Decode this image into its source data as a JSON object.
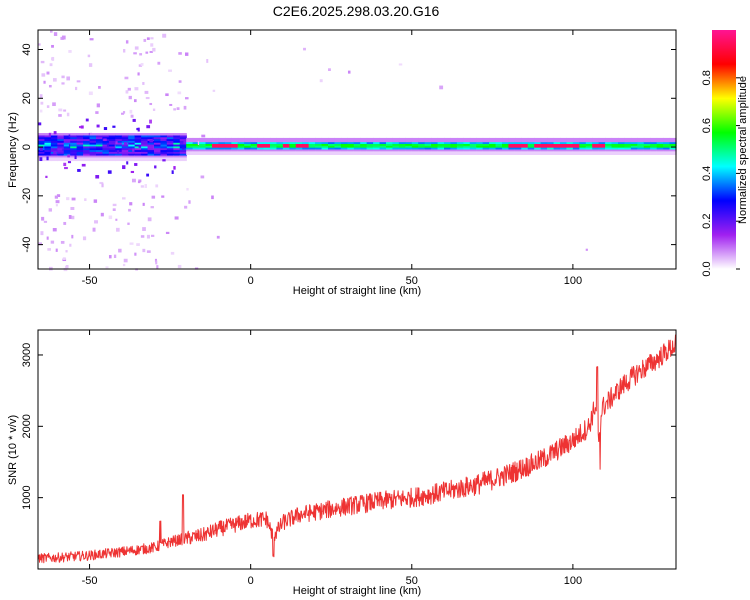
{
  "title": "C2E6.2025.298.03.20.G16",
  "chart_data": [
    {
      "type": "heatmap",
      "id": "spectrogram",
      "xlabel": "Height of straight line (km)",
      "ylabel": "Frequency (Hz)",
      "xlim": [
        -66,
        132
      ],
      "ylim": [
        -50,
        48
      ],
      "xticks": [
        -50,
        0,
        50,
        100
      ],
      "yticks": [
        -40,
        -20,
        0,
        20,
        40
      ],
      "x_tick_labels": [
        "-50",
        "0",
        "50",
        "100"
      ],
      "y_tick_labels": [
        "-40",
        "-20",
        "0",
        "20",
        "40"
      ],
      "colorbar": {
        "label": "Normalized spectral amplitude",
        "range": [
          0,
          1
        ],
        "ticks": [
          0.0,
          0.2,
          0.4,
          0.6,
          0.8
        ],
        "tick_labels": [
          "0.0",
          "0.2",
          "0.4",
          "0.6",
          "0.8"
        ],
        "colormap": [
          "#ffffff",
          "#a020f0",
          "#0000ff",
          "#00ffff",
          "#00ff00",
          "#ffff00",
          "#ff0000",
          "#ff1493"
        ]
      },
      "band_center_hz": 0.5,
      "band_halfwidth_hz": 1.5,
      "strong_segments_km": [
        [
          -12,
          -5
        ],
        [
          2,
          6
        ],
        [
          10,
          12
        ],
        [
          15,
          18
        ],
        [
          81,
          86
        ],
        [
          88,
          102
        ],
        [
          107,
          109
        ]
      ],
      "noise_region_km": [
        -66,
        -20
      ]
    },
    {
      "type": "line",
      "id": "snr",
      "xlabel": "Height of straight line (km)",
      "ylabel": "SNR (10 * v/v)",
      "xlim": [
        -66,
        132
      ],
      "ylim": [
        0,
        3350
      ],
      "xticks": [
        -50,
        0,
        50,
        100
      ],
      "yticks": [
        1000,
        2000,
        3000
      ],
      "x_tick_labels": [
        "-50",
        "0",
        "50",
        "100"
      ],
      "y_tick_labels": [
        "1000",
        "2000",
        "3000"
      ],
      "color": "#ee3333",
      "series": [
        {
          "name": "SNR",
          "x": [
            -66,
            -60,
            -50,
            -40,
            -30,
            -25,
            -21,
            -15,
            -10,
            -5,
            0,
            5,
            7,
            10,
            15,
            20,
            30,
            40,
            50,
            60,
            70,
            80,
            90,
            100,
            105,
            107,
            108,
            109,
            110,
            115,
            120,
            125,
            132
          ],
          "y": [
            150,
            160,
            190,
            240,
            300,
            380,
            420,
            470,
            560,
            620,
            680,
            700,
            450,
            650,
            760,
            800,
            880,
            950,
            1000,
            1080,
            1180,
            1330,
            1520,
            1800,
            2000,
            2300,
            1700,
            2250,
            2300,
            2550,
            2750,
            2900,
            3150
          ],
          "noise_amplitude": 150,
          "spikes": [
            {
              "x": -21,
              "y": 1050
            },
            {
              "x": -28,
              "y": 650
            },
            {
              "x": 107.5,
              "y": 2820
            },
            {
              "x": 108.5,
              "y": 1400
            },
            {
              "x": 7,
              "y": 180
            }
          ]
        }
      ]
    }
  ]
}
